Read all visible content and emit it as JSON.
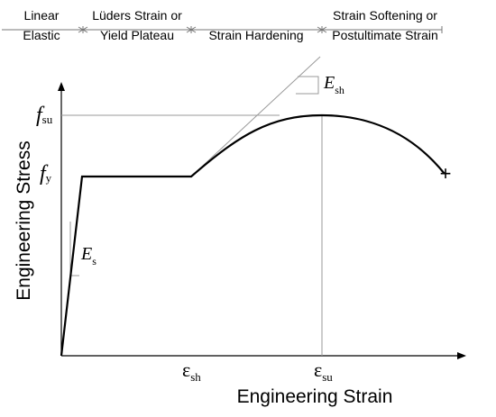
{
  "regions": {
    "linear_elastic": [
      "Linear",
      "Elastic"
    ],
    "luders": [
      "Lüders Strain or",
      "Yield Plateau"
    ],
    "strain_hardening": "Strain Hardening",
    "strain_softening": [
      "Strain Softening or",
      "Postultimate Strain"
    ]
  },
  "axes": {
    "x_title": "Engineering Strain",
    "y_title": "Engineering Stress"
  },
  "y_ticks": {
    "fsu": {
      "main": "f",
      "sub": "su"
    },
    "fy": {
      "main": "f",
      "sub": "y"
    }
  },
  "x_ticks": {
    "esh": {
      "main": "ε",
      "sub": "sh"
    },
    "esu": {
      "main": "ε",
      "sub": "su"
    }
  },
  "slopes": {
    "Es": {
      "main": "E",
      "sub": "s"
    },
    "Esh": {
      "main": "E",
      "sub": "sh"
    }
  },
  "fracture_marker": "+",
  "colors": {
    "curve": "#000000",
    "guides": "#999999"
  }
}
